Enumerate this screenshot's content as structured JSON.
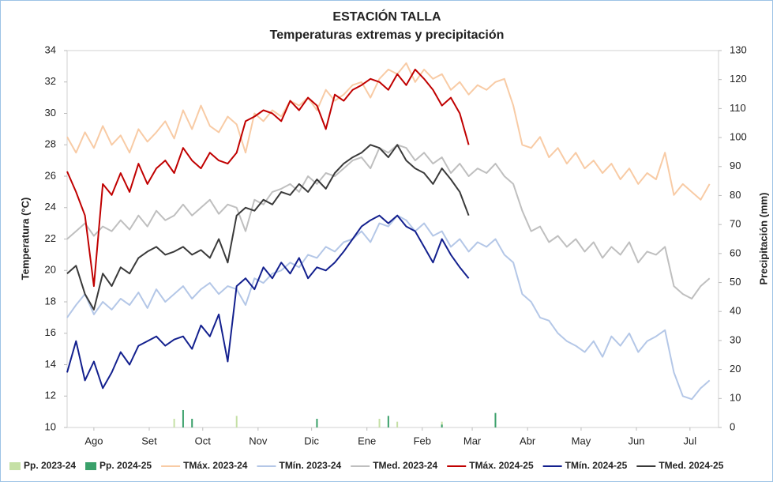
{
  "chart_data": {
    "type": "line",
    "title": "ESTACIÓN TALLA",
    "subtitle": "Temperaturas extremas y precipitación",
    "y_label": "Temperatura (°C)",
    "y2_label": "Precipitación (mm)",
    "legend": "bottom",
    "grid": false,
    "xlim": [
      0,
      365
    ],
    "xticks": [
      {
        "value": 15,
        "label": "Ago"
      },
      {
        "value": 46,
        "label": "Set"
      },
      {
        "value": 76,
        "label": "Oct"
      },
      {
        "value": 107,
        "label": "Nov"
      },
      {
        "value": 137,
        "label": "Dic"
      },
      {
        "value": 168,
        "label": "Ene"
      },
      {
        "value": 199,
        "label": "Feb"
      },
      {
        "value": 227,
        "label": "Mar"
      },
      {
        "value": 258,
        "label": "Abr"
      },
      {
        "value": 288,
        "label": "May"
      },
      {
        "value": 319,
        "label": "Jun"
      },
      {
        "value": 349,
        "label": "Jul"
      }
    ],
    "ylim": [
      10,
      34
    ],
    "yticks": [
      10,
      12,
      14,
      16,
      18,
      20,
      22,
      24,
      26,
      28,
      30,
      32,
      34
    ],
    "y2lim": [
      0,
      130
    ],
    "y2ticks": [
      0,
      10,
      20,
      30,
      40,
      50,
      60,
      70,
      80,
      90,
      100,
      110,
      120,
      130
    ],
    "x": [
      0,
      5,
      10,
      15,
      20,
      25,
      30,
      35,
      40,
      45,
      50,
      55,
      60,
      65,
      70,
      75,
      80,
      85,
      90,
      95,
      100,
      105,
      110,
      115,
      120,
      125,
      130,
      135,
      140,
      145,
      150,
      155,
      160,
      165,
      170,
      175,
      180,
      185,
      190,
      195,
      200,
      205,
      210,
      215,
      220,
      225,
      230,
      235,
      240,
      245,
      250,
      255,
      260,
      265,
      270,
      275,
      280,
      285,
      290,
      295,
      300,
      305,
      310,
      315,
      320,
      325,
      330,
      335,
      340,
      345,
      350,
      355,
      360
    ],
    "series": [
      {
        "name": "Pp. 2023-24",
        "type": "bar",
        "axis": "y2",
        "color": "#c5e0a5",
        "values": [
          0,
          0,
          0,
          0,
          0,
          0,
          0,
          0,
          0,
          0,
          0,
          0,
          3,
          0,
          0,
          0,
          0,
          0,
          0,
          4,
          0,
          0,
          0,
          0,
          0,
          0,
          0,
          0,
          2,
          0,
          0,
          0,
          0,
          0,
          0,
          3,
          0,
          2,
          0,
          0,
          0,
          0,
          2,
          0,
          0,
          0,
          0,
          0,
          0,
          0,
          0,
          0,
          0,
          0,
          0,
          0,
          0,
          0,
          0,
          0,
          0,
          0,
          0,
          0,
          0,
          0,
          0,
          0,
          0,
          0,
          0,
          0,
          0
        ]
      },
      {
        "name": "Pp. 2024-25",
        "type": "bar",
        "axis": "y2",
        "color": "#3aa06a",
        "values": [
          0,
          0,
          0,
          0,
          0,
          0,
          0,
          0,
          0,
          0,
          0,
          0,
          0,
          6,
          3,
          0,
          0,
          0,
          0,
          0,
          0,
          0,
          0,
          0,
          0,
          0,
          0,
          0,
          3,
          0,
          0,
          0,
          0,
          0,
          0,
          0,
          4,
          0,
          0,
          0,
          0,
          0,
          1,
          0,
          0,
          0,
          0,
          0,
          5,
          0,
          0,
          0,
          0,
          0,
          0,
          0,
          0,
          0,
          0,
          0,
          0,
          0,
          0,
          0,
          0,
          0,
          0,
          0,
          0,
          0,
          0,
          0,
          0
        ]
      },
      {
        "name": "TMáx. 2023-24",
        "color": "#f8cba5",
        "values": [
          28.5,
          27.5,
          28.8,
          27.8,
          29.2,
          28.0,
          28.6,
          27.5,
          29.0,
          28.2,
          28.8,
          29.5,
          28.4,
          30.2,
          29.0,
          30.5,
          29.2,
          28.8,
          29.8,
          29.3,
          27.5,
          30.0,
          29.5,
          30.2,
          29.8,
          30.8,
          30.5,
          31.0,
          30.2,
          31.5,
          30.8,
          31.2,
          31.8,
          32.0,
          31.0,
          32.2,
          32.8,
          32.5,
          33.2,
          32.0,
          32.8,
          32.2,
          32.5,
          31.5,
          32.0,
          31.2,
          31.8,
          31.5,
          32.0,
          32.2,
          30.5,
          28.0,
          27.8,
          28.5,
          27.2,
          27.8,
          26.8,
          27.5,
          26.5,
          27.0,
          26.2,
          26.8,
          25.8,
          26.5,
          25.5,
          26.2,
          25.8,
          27.5,
          24.8,
          25.5,
          25.0,
          24.5,
          25.5
        ]
      },
      {
        "name": "TMín. 2023-24",
        "color": "#b4c7e7",
        "values": [
          17.0,
          17.8,
          18.5,
          17.2,
          18.0,
          17.5,
          18.2,
          17.8,
          18.6,
          17.6,
          18.8,
          18.0,
          18.5,
          19.0,
          18.2,
          18.8,
          19.2,
          18.5,
          19.0,
          18.8,
          17.8,
          19.5,
          19.2,
          19.8,
          20.0,
          20.5,
          20.2,
          21.0,
          20.8,
          21.5,
          21.2,
          21.8,
          22.0,
          22.5,
          21.8,
          23.0,
          22.8,
          23.5,
          23.2,
          22.5,
          23.0,
          22.2,
          22.5,
          21.5,
          22.0,
          21.2,
          21.8,
          21.5,
          22.0,
          21.0,
          20.5,
          18.5,
          18.0,
          17.0,
          16.8,
          16.0,
          15.5,
          15.2,
          14.8,
          15.5,
          14.5,
          15.8,
          15.2,
          16.0,
          14.8,
          15.5,
          15.8,
          16.2,
          13.5,
          12.0,
          11.8,
          12.5,
          13.0
        ]
      },
      {
        "name": "TMed. 2023-24",
        "color": "#bfbfbf",
        "values": [
          22.0,
          22.5,
          23.0,
          22.2,
          22.8,
          22.5,
          23.2,
          22.6,
          23.5,
          22.8,
          23.8,
          23.2,
          23.5,
          24.2,
          23.5,
          24.0,
          24.5,
          23.6,
          24.2,
          24.0,
          22.5,
          24.5,
          24.2,
          25.0,
          25.2,
          25.5,
          25.0,
          26.0,
          25.5,
          26.2,
          26.0,
          26.5,
          27.0,
          27.2,
          26.5,
          27.8,
          27.5,
          28.0,
          27.8,
          27.0,
          27.5,
          26.8,
          27.2,
          26.2,
          26.8,
          26.0,
          26.5,
          26.2,
          26.8,
          26.0,
          25.5,
          23.8,
          22.5,
          22.8,
          21.8,
          22.2,
          21.5,
          22.0,
          21.2,
          21.8,
          20.8,
          21.5,
          21.0,
          21.8,
          20.5,
          21.2,
          21.0,
          21.5,
          19.0,
          18.5,
          18.2,
          19.0,
          19.5
        ]
      },
      {
        "name": "TMáx. 2024-25",
        "color": "#c00000",
        "values": [
          26.3,
          25.0,
          23.5,
          19.0,
          25.5,
          24.8,
          26.2,
          25.0,
          26.8,
          25.5,
          26.5,
          27.0,
          26.2,
          27.8,
          27.0,
          26.5,
          27.5,
          27.0,
          26.8,
          27.5,
          29.5,
          29.8,
          30.2,
          30.0,
          29.5,
          30.8,
          30.2,
          31.0,
          30.5,
          29.0,
          31.2,
          30.8,
          31.5,
          31.8,
          32.2,
          32.0,
          31.5,
          32.5,
          31.8,
          32.8,
          32.2,
          31.5,
          30.5,
          31.0,
          30.0,
          28.0,
          null,
          null,
          null,
          null,
          null,
          null,
          null,
          null,
          null,
          null,
          null,
          null,
          null,
          null,
          null,
          null,
          null,
          null,
          null,
          null,
          null,
          null,
          null,
          null,
          null,
          null,
          null
        ]
      },
      {
        "name": "TMín. 2024-25",
        "color": "#13208e",
        "values": [
          13.5,
          15.5,
          13.0,
          14.2,
          12.5,
          13.5,
          14.8,
          14.0,
          15.2,
          15.5,
          15.8,
          15.2,
          15.6,
          15.8,
          15.0,
          16.5,
          15.8,
          17.2,
          14.2,
          19.0,
          19.5,
          18.8,
          20.2,
          19.5,
          20.5,
          19.8,
          20.8,
          19.5,
          20.2,
          20.0,
          20.5,
          21.2,
          22.0,
          22.8,
          23.2,
          23.5,
          23.0,
          23.5,
          22.8,
          22.5,
          21.5,
          20.5,
          22.0,
          21.0,
          20.2,
          19.5,
          null,
          null,
          null,
          null,
          null,
          null,
          null,
          null,
          null,
          null,
          null,
          null,
          null,
          null,
          null,
          null,
          null,
          null,
          null,
          null,
          null,
          null,
          null,
          null,
          null,
          null,
          null
        ]
      },
      {
        "name": "TMed. 2024-25",
        "color": "#3a3a3a",
        "values": [
          19.8,
          20.3,
          18.5,
          17.5,
          19.8,
          19.0,
          20.2,
          19.8,
          20.8,
          21.2,
          21.5,
          21.0,
          21.2,
          21.5,
          21.0,
          21.3,
          20.8,
          22.0,
          20.5,
          23.5,
          24.0,
          23.8,
          24.5,
          24.2,
          25.0,
          24.8,
          25.5,
          25.0,
          25.8,
          25.2,
          26.2,
          26.8,
          27.2,
          27.5,
          28.0,
          27.8,
          27.2,
          28.0,
          27.0,
          26.5,
          26.2,
          25.5,
          26.5,
          25.8,
          25.0,
          23.5,
          null,
          null,
          null,
          null,
          null,
          null,
          null,
          null,
          null,
          null,
          null,
          null,
          null,
          null,
          null,
          null,
          null,
          null,
          null,
          null,
          null,
          null,
          null,
          null,
          null,
          null,
          null
        ]
      }
    ]
  }
}
